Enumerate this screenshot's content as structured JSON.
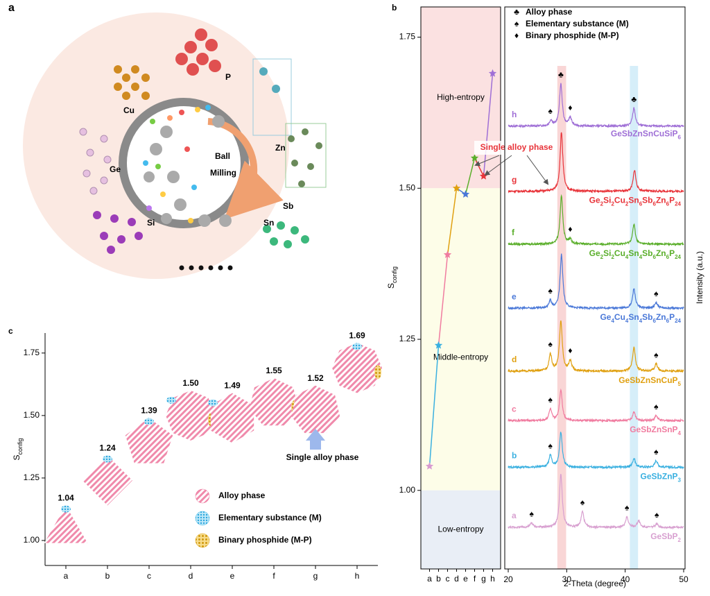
{
  "panel_a": {
    "letter": "a",
    "elements": [
      "P",
      "Cu",
      "Zn",
      "Ge",
      "Sb",
      "Si",
      "Sn"
    ],
    "mill_label": [
      "Ball",
      "Milling"
    ]
  },
  "chart_data": [
    {
      "type": "polygon-scatter",
      "letter": "c",
      "y_label": "S",
      "y_label_sub": "config",
      "categories": [
        "a",
        "b",
        "c",
        "d",
        "e",
        "f",
        "g",
        "h"
      ],
      "values": [
        1.04,
        1.24,
        1.39,
        1.5,
        1.49,
        1.55,
        1.52,
        1.69
      ],
      "value_labels": [
        "1.04",
        "1.24",
        "1.39",
        "1.50",
        "1.49",
        "1.55",
        "1.52",
        "1.69"
      ],
      "ylim": [
        0.9,
        1.83
      ],
      "yticks": [
        {
          "value": 1,
          "label": "1.00"
        },
        {
          "value": 1.25,
          "label": "1.25"
        },
        {
          "value": 1.5,
          "label": "1.50"
        },
        {
          "value": 1.75,
          "label": "1.75"
        }
      ],
      "annotation": "Single alloy phase",
      "legend": [
        "Alloy phase",
        "Elementary substance (M)",
        "Binary phosphide (M-P)"
      ],
      "colors": [
        "#ee6f98",
        "#3bb6e6",
        "#dca21c"
      ]
    },
    {
      "type": "star-line",
      "letter": "b",
      "y_label": "S",
      "y_label_sub": "config",
      "categories": [
        "a",
        "b",
        "c",
        "d",
        "e",
        "f",
        "g",
        "h"
      ],
      "values": [
        1.04,
        1.24,
        1.39,
        1.5,
        1.49,
        1.55,
        1.52,
        1.69
      ],
      "colors": [
        "#d89ad0",
        "#3ab0e0",
        "#f07ca0",
        "#e0a010",
        "#4a78d8",
        "#5aae2a",
        "#e8343a",
        "#9f6fd6"
      ],
      "ylim": [
        0.87,
        1.8
      ],
      "yticks": [
        {
          "value": 1,
          "label": "1.00"
        },
        {
          "value": 1.25,
          "label": "1.25"
        },
        {
          "value": 1.5,
          "label": "1.50"
        },
        {
          "value": 1.75,
          "label": "1.75"
        }
      ],
      "regions": [
        {
          "label": "High-entropy",
          "from": 1.5,
          "to": 1.8,
          "color": "#fbe1e1"
        },
        {
          "label": "Middle-entropy",
          "from": 1,
          "to": 1.5,
          "color": "#fdfde8"
        },
        {
          "label": "Low-entropy",
          "from": 0.87,
          "to": 1,
          "color": "#e9eef6"
        }
      ],
      "annotation": "Single alloy phase"
    },
    {
      "type": "xrd",
      "x_label": "2-Theta (degree)",
      "y_label": "Intensity (a.u.)",
      "xlim": [
        20,
        50
      ],
      "xticks": [
        20,
        30,
        40,
        50
      ],
      "ylim": [
        0,
        100
      ],
      "bands": [
        {
          "from": 28.4,
          "to": 29.9,
          "color": "#f9d6d6"
        },
        {
          "from": 40.8,
          "to": 42.2,
          "color": "#d6eef9"
        }
      ],
      "legend": [
        {
          "symbol": "♣",
          "label": "Alloy phase"
        },
        {
          "symbol": "♠",
          "label": "Elementary substance (M)"
        },
        {
          "symbol": "♦",
          "label": "Binary phosphide (M-P)"
        }
      ],
      "series": [
        {
          "name": "h",
          "formula": "GeSbZnSnCuSiP6",
          "color": "#9f6fd6",
          "offset": 78.8,
          "peaks": [
            {
              "x": 27.3,
              "h": 1
            },
            {
              "x": 29,
              "h": 7.5
            },
            {
              "x": 30.6,
              "h": 1.5
            },
            {
              "x": 41.5,
              "h": 3.2
            }
          ],
          "symbols": [
            {
              "x": 29,
              "s": "♣"
            },
            {
              "x": 27.2,
              "s": "♠"
            },
            {
              "x": 30.6,
              "s": "♦"
            },
            {
              "x": 41.5,
              "s": "♣"
            }
          ]
        },
        {
          "name": "g",
          "formula": "Ge2Si2Cu2Sn6Sb6Zn6P24",
          "color": "#e8343a",
          "offset": 67.2,
          "peaks": [
            {
              "x": 29.1,
              "h": 10.5
            },
            {
              "x": 41.6,
              "h": 3.8
            }
          ],
          "symbols": []
        },
        {
          "name": "f",
          "formula": "Ge2Si2Cu4Sn4Sb6Zn6P24",
          "color": "#5aae2a",
          "offset": 57.8,
          "peaks": [
            {
              "x": 29.1,
              "h": 8.5
            },
            {
              "x": 30.6,
              "h": 0.8
            },
            {
              "x": 41.5,
              "h": 3.5
            }
          ],
          "symbols": [
            {
              "x": 30.6,
              "s": "♦"
            }
          ]
        },
        {
          "name": "e",
          "formula": "Ge4Cu4Sn4Sb6Zn6P24",
          "color": "#4a78d8",
          "offset": 46.4,
          "peaks": [
            {
              "x": 27.2,
              "h": 1.3
            },
            {
              "x": 29.1,
              "h": 9.5
            },
            {
              "x": 41.5,
              "h": 3.5
            },
            {
              "x": 45.3,
              "h": 1
            }
          ],
          "symbols": [
            {
              "x": 27.2,
              "s": "♠"
            },
            {
              "x": 45.3,
              "s": "♠"
            }
          ]
        },
        {
          "name": "d",
          "formula": "GeSbZnSnCuP5",
          "color": "#e0a010",
          "offset": 35.2,
          "peaks": [
            {
              "x": 27.2,
              "h": 3
            },
            {
              "x": 29,
              "h": 9
            },
            {
              "x": 30.6,
              "h": 1.8
            },
            {
              "x": 41.5,
              "h": 4.2
            },
            {
              "x": 45.3,
              "h": 1.3
            }
          ],
          "symbols": [
            {
              "x": 27.2,
              "s": "♠"
            },
            {
              "x": 30.6,
              "s": "♦"
            },
            {
              "x": 45.3,
              "s": "♠"
            }
          ]
        },
        {
          "name": "c",
          "formula": "GeSbZnSnP4",
          "color": "#f07ca0",
          "offset": 26.4,
          "peaks": [
            {
              "x": 27.2,
              "h": 2
            },
            {
              "x": 29,
              "h": 5.5
            },
            {
              "x": 41.5,
              "h": 1.5
            },
            {
              "x": 45.3,
              "h": 0.9
            }
          ],
          "symbols": [
            {
              "x": 27.2,
              "s": "♠"
            },
            {
              "x": 45.3,
              "s": "♠"
            }
          ]
        },
        {
          "name": "b",
          "formula": "GeSbZnP3",
          "color": "#3ab0e0",
          "offset": 18.1,
          "peaks": [
            {
              "x": 27.2,
              "h": 2.1
            },
            {
              "x": 29,
              "h": 6.2
            },
            {
              "x": 41.5,
              "h": 1.6
            },
            {
              "x": 45.3,
              "h": 1.2
            }
          ],
          "symbols": [
            {
              "x": 27.2,
              "s": "♠"
            },
            {
              "x": 45.3,
              "s": "♠"
            }
          ]
        },
        {
          "name": "a",
          "formula": "GeSbP2",
          "color": "#d8a0d0",
          "offset": 7.4,
          "peaks": [
            {
              "x": 24,
              "h": 0.8
            },
            {
              "x": 29,
              "h": 9.5
            },
            {
              "x": 32.7,
              "h": 2.8
            },
            {
              "x": 40.3,
              "h": 1.9
            },
            {
              "x": 42.3,
              "h": 1.2
            },
            {
              "x": 45.4,
              "h": 0.6
            }
          ],
          "symbols": [
            {
              "x": 24,
              "s": "♠"
            },
            {
              "x": 32.7,
              "s": "♠"
            },
            {
              "x": 40.3,
              "s": "♠"
            },
            {
              "x": 45.4,
              "s": "♠"
            }
          ]
        }
      ]
    }
  ]
}
